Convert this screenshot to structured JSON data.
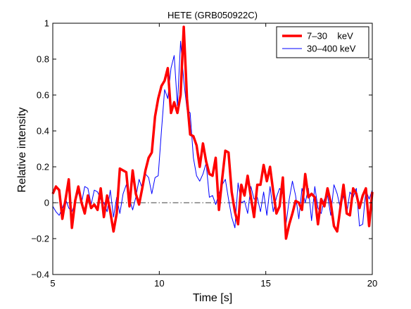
{
  "chart_data": {
    "type": "line",
    "title": "HETE (GRB050922C)",
    "xlabel": "Time  [s]",
    "ylabel": "Relative intensity",
    "xlim": [
      5,
      20
    ],
    "ylim": [
      -0.4,
      1
    ],
    "xticks": [
      5,
      10,
      15,
      20
    ],
    "yticks": [
      -0.4,
      -0.2,
      0,
      0.2,
      0.4,
      0.6,
      0.8,
      1
    ],
    "xtick_labels": [
      "5",
      "10",
      "15",
      "20"
    ],
    "ytick_labels": [
      "−0.4",
      "−0.2",
      "0",
      "0.2",
      "0.4",
      "0.6",
      "0.8",
      "1"
    ],
    "grid": false,
    "legend_position": "top-right",
    "zero_line": {
      "y": 0,
      "style": "dash-dot",
      "color": "#000000"
    },
    "series": [
      {
        "name": "7–30    keV",
        "color": "#ff0000",
        "width": "thick",
        "x": [
          5.0,
          5.15,
          5.3,
          5.45,
          5.6,
          5.75,
          5.9,
          6.05,
          6.2,
          6.35,
          6.5,
          6.65,
          6.8,
          6.95,
          7.1,
          7.25,
          7.4,
          7.55,
          7.7,
          7.85,
          8.0,
          8.15,
          8.3,
          8.45,
          8.6,
          8.75,
          8.9,
          9.05,
          9.2,
          9.35,
          9.5,
          9.65,
          9.8,
          9.95,
          10.1,
          10.25,
          10.4,
          10.55,
          10.7,
          10.85,
          11.0,
          11.15,
          11.3,
          11.45,
          11.6,
          11.75,
          11.9,
          12.05,
          12.2,
          12.35,
          12.5,
          12.65,
          12.8,
          12.95,
          13.1,
          13.25,
          13.4,
          13.55,
          13.7,
          13.85,
          14.0,
          14.15,
          14.3,
          14.45,
          14.6,
          14.75,
          14.9,
          15.05,
          15.2,
          15.35,
          15.5,
          15.65,
          15.8,
          15.95,
          16.1,
          16.25,
          16.4,
          16.55,
          16.7,
          16.85,
          17.0,
          17.15,
          17.3,
          17.45,
          17.6,
          17.75,
          17.9,
          18.05,
          18.2,
          18.35,
          18.5,
          18.65,
          18.8,
          18.95,
          19.1,
          19.25,
          19.4,
          19.55,
          19.7,
          19.85,
          20.0
        ],
        "values": [
          0.05,
          0.09,
          0.07,
          -0.09,
          0.02,
          0.13,
          -0.14,
          0.01,
          0.09,
          0.0,
          -0.06,
          0.04,
          -0.03,
          -0.01,
          -0.04,
          0.08,
          -0.08,
          0.04,
          -0.05,
          -0.16,
          -0.06,
          0.19,
          0.18,
          0.17,
          -0.02,
          0.18,
          0.05,
          -0.01,
          0.08,
          0.18,
          0.25,
          0.28,
          0.48,
          0.58,
          0.65,
          0.68,
          0.75,
          0.5,
          0.56,
          0.5,
          0.6,
          0.98,
          0.58,
          0.38,
          0.37,
          0.32,
          0.2,
          0.33,
          0.23,
          0.16,
          0.15,
          0.25,
          -0.04,
          0.13,
          0.29,
          0.28,
          0.06,
          -0.05,
          -0.12,
          0.1,
          0.04,
          0.15,
          0.03,
          -0.08,
          0.1,
          0.1,
          0.21,
          0.12,
          0.2,
          0.06,
          -0.06,
          -0.02,
          0.14,
          -0.2,
          -0.12,
          -0.06,
          0.01,
          0.0,
          -0.04,
          0.16,
          0.03,
          0.05,
          0.03,
          -0.12,
          0.02,
          -0.02,
          0.08,
          0.0,
          -0.13,
          -0.16,
          -0.03,
          0.1,
          -0.06,
          -0.07,
          0.08,
          0.05,
          -0.03,
          0.04,
          0.08,
          -0.13,
          0.06
        ]
      },
      {
        "name": "30–400 keV",
        "color": "#0000ff",
        "width": "thin",
        "x": [
          5.0,
          5.15,
          5.3,
          5.45,
          5.6,
          5.75,
          5.9,
          6.05,
          6.2,
          6.35,
          6.5,
          6.65,
          6.8,
          6.95,
          7.1,
          7.25,
          7.4,
          7.55,
          7.7,
          7.85,
          8.0,
          8.15,
          8.3,
          8.45,
          8.6,
          8.75,
          8.9,
          9.05,
          9.2,
          9.35,
          9.5,
          9.65,
          9.8,
          9.95,
          10.1,
          10.25,
          10.4,
          10.55,
          10.7,
          10.85,
          11.0,
          11.15,
          11.3,
          11.45,
          11.6,
          11.75,
          11.9,
          12.05,
          12.2,
          12.35,
          12.5,
          12.65,
          12.8,
          12.95,
          13.1,
          13.25,
          13.4,
          13.55,
          13.7,
          13.85,
          14.0,
          14.15,
          14.3,
          14.45,
          14.6,
          14.75,
          14.9,
          15.05,
          15.2,
          15.35,
          15.5,
          15.65,
          15.8,
          15.95,
          16.1,
          16.25,
          16.4,
          16.55,
          16.7,
          16.85,
          17.0,
          17.15,
          17.3,
          17.45,
          17.6,
          17.75,
          17.9,
          18.05,
          18.2,
          18.35,
          18.5,
          18.65,
          18.8,
          18.95,
          19.1,
          19.25,
          19.4,
          19.55,
          19.7,
          19.85,
          20.0
        ],
        "values": [
          -0.02,
          -0.05,
          -0.07,
          -0.03,
          0.02,
          -0.03,
          -0.05,
          0.0,
          0.06,
          0.0,
          0.09,
          0.08,
          -0.01,
          0.07,
          0.06,
          0.02,
          0.0,
          -0.05,
          0.07,
          -0.08,
          0.03,
          -0.06,
          0.05,
          0.1,
          0.02,
          -0.04,
          0.03,
          0.13,
          0.08,
          0.16,
          0.14,
          0.05,
          0.14,
          0.15,
          0.4,
          0.63,
          0.58,
          0.75,
          0.82,
          0.54,
          0.9,
          0.68,
          0.52,
          0.5,
          0.25,
          0.15,
          0.12,
          0.16,
          0.22,
          0.03,
          0.04,
          -0.01,
          0.05,
          0.1,
          0.13,
          0.02,
          -0.08,
          -0.14,
          0.11,
          0.0,
          0.01,
          -0.06,
          0.09,
          0.02,
          0.03,
          -0.05,
          0.06,
          -0.07,
          0.09,
          -0.05,
          0.03,
          0.08,
          0.05,
          -0.12,
          0.02,
          0.12,
          0.04,
          -0.09,
          0.08,
          0.0,
          0.08,
          -0.1,
          0.09,
          -0.03,
          -0.06,
          0.02,
          0.04,
          -0.07,
          0.1,
          0.05,
          -0.03,
          0.04,
          -0.06,
          0.06,
          0.03,
          0.08,
          -0.13,
          -0.12,
          0.07,
          0.02,
          0.07
        ]
      }
    ]
  }
}
